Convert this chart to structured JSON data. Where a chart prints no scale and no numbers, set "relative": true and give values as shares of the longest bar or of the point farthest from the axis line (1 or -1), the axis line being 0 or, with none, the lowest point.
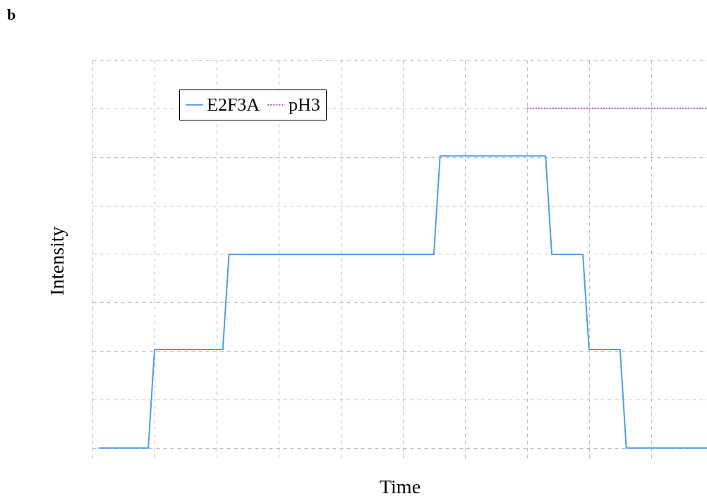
{
  "chart_data": {
    "type": "line",
    "title": "b",
    "xlabel": "Time",
    "ylabel": "Intensity",
    "relative": true,
    "grid": true,
    "legend": "top left",
    "marker": "none",
    "categories": [
      null,
      null,
      null,
      null,
      null,
      null,
      null,
      null,
      null,
      null,
      null,
      null,
      null,
      null,
      null,
      null,
      null,
      null,
      null,
      null,
      null,
      null,
      null,
      null,
      null,
      null,
      null,
      null,
      null,
      null,
      null,
      null,
      null,
      null,
      null,
      null,
      null,
      null,
      null,
      null,
      null,
      null,
      null,
      null,
      null,
      null,
      null,
      null,
      null,
      null,
      null,
      null,
      null,
      null,
      null,
      null,
      null,
      null,
      null,
      null,
      null,
      null,
      null,
      null,
      null,
      null,
      null,
      null,
      null,
      null,
      null,
      null,
      null,
      null,
      null,
      null,
      null,
      null,
      null,
      null,
      null,
      null,
      null,
      null,
      null,
      null,
      null,
      null,
      null,
      null,
      null,
      null,
      null,
      null,
      null,
      null,
      null,
      null,
      null,
      null
    ],
    "series": [
      {
        "name": "E2F3A",
        "color": "#4f9de8",
        "line_style": "solid",
        "values": [
          null,
          0,
          0,
          0,
          0,
          0,
          0,
          0,
          0,
          0,
          0.29,
          0.29,
          0.29,
          0.29,
          0.29,
          0.29,
          0.29,
          0.29,
          0.29,
          0.29,
          0.29,
          0.29,
          0.57,
          0.57,
          0.57,
          0.57,
          0.57,
          0.57,
          0.57,
          0.57,
          0.57,
          0.57,
          0.57,
          0.57,
          0.57,
          0.57,
          0.57,
          0.57,
          0.57,
          0.57,
          0.57,
          0.57,
          0.57,
          0.57,
          0.57,
          0.57,
          0.57,
          0.57,
          0.57,
          0.57,
          0.57,
          0.57,
          0.57,
          0.57,
          0.57,
          0.57,
          0.86,
          0.86,
          0.86,
          0.86,
          0.86,
          0.86,
          0.86,
          0.86,
          0.86,
          0.86,
          0.86,
          0.86,
          0.86,
          0.86,
          0.86,
          0.86,
          0.86,
          0.86,
          0.57,
          0.57,
          0.57,
          0.57,
          0.57,
          0.57,
          0.29,
          0.29,
          0.29,
          0.29,
          0.29,
          0.29,
          0,
          0,
          0,
          0,
          0,
          0,
          0,
          0,
          0,
          0,
          0,
          0,
          0,
          0
        ]
      },
      {
        "name": "pH3",
        "color": "#9b59d0",
        "line_style": "dotted",
        "values": [
          null,
          null,
          null,
          null,
          null,
          null,
          null,
          null,
          null,
          null,
          null,
          null,
          null,
          null,
          null,
          null,
          null,
          null,
          null,
          null,
          null,
          null,
          null,
          null,
          null,
          null,
          null,
          null,
          null,
          null,
          null,
          null,
          null,
          null,
          null,
          null,
          null,
          null,
          null,
          null,
          null,
          null,
          null,
          null,
          null,
          null,
          null,
          null,
          null,
          null,
          null,
          null,
          null,
          null,
          null,
          null,
          null,
          null,
          null,
          null,
          null,
          null,
          null,
          null,
          null,
          null,
          null,
          null,
          null,
          null,
          1,
          1,
          1,
          1,
          1,
          1,
          1,
          1,
          1,
          1,
          1,
          1,
          1,
          1,
          1,
          1,
          1,
          1,
          1,
          1,
          1,
          1,
          1,
          1,
          1,
          1,
          1,
          1,
          1,
          1
        ]
      }
    ]
  }
}
